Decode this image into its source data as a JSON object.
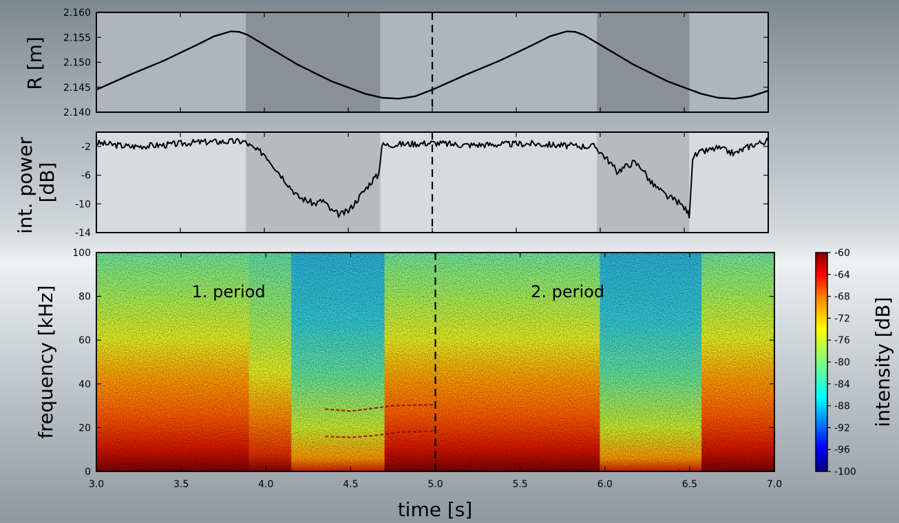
{
  "chart_data": [
    {
      "type": "line",
      "ylabel": "R [m]",
      "xlim": [
        3.0,
        7.0
      ],
      "ylim": [
        2.14,
        2.16
      ],
      "yticks": [
        "2.140",
        "2.145",
        "2.150",
        "2.155",
        "2.160"
      ],
      "series": [
        {
          "x": [
            3.0,
            3.2,
            3.4,
            3.6,
            3.7,
            3.8,
            3.85,
            3.9,
            4.0,
            4.2,
            4.4,
            4.6,
            4.7,
            4.8,
            4.9,
            5.0,
            5.2,
            5.4,
            5.6,
            5.7,
            5.8,
            5.85,
            5.9,
            6.0,
            6.2,
            6.4,
            6.6,
            6.7,
            6.8,
            6.9,
            7.0
          ],
          "values": [
            2.1445,
            2.1475,
            2.1503,
            2.1535,
            2.1552,
            2.1562,
            2.1561,
            2.1555,
            2.1535,
            2.1495,
            2.1462,
            2.1437,
            2.1429,
            2.1427,
            2.1432,
            2.1445,
            2.1475,
            2.1503,
            2.1535,
            2.1552,
            2.1562,
            2.1561,
            2.1555,
            2.1535,
            2.1495,
            2.1462,
            2.1437,
            2.1429,
            2.1427,
            2.1432,
            2.1443
          ]
        }
      ],
      "shaded_intervals": [
        [
          3.89,
          4.69
        ],
        [
          5.98,
          6.53
        ]
      ],
      "vline": 5.0
    },
    {
      "type": "line",
      "ylabel": "int. power [dB]",
      "xlim": [
        3.0,
        7.0
      ],
      "ylim": [
        -14,
        0
      ],
      "yticks": [
        "-14",
        "-10",
        "-6",
        "-2"
      ],
      "series": [
        {
          "x": [
            3.0,
            3.2,
            3.4,
            3.6,
            3.8,
            3.88,
            3.95,
            4.0,
            4.05,
            4.1,
            4.15,
            4.2,
            4.3,
            4.35,
            4.4,
            4.45,
            4.5,
            4.55,
            4.6,
            4.65,
            4.68,
            4.7,
            4.8,
            5.0,
            5.2,
            5.4,
            5.6,
            5.8,
            5.97,
            6.05,
            6.1,
            6.15,
            6.2,
            6.25,
            6.3,
            6.35,
            6.4,
            6.45,
            6.5,
            6.53,
            6.55,
            6.6,
            6.7,
            6.8,
            6.9,
            7.0
          ],
          "values": [
            -1.5,
            -2.0,
            -1.8,
            -1.4,
            -1.3,
            -1.3,
            -2.5,
            -3.0,
            -4.5,
            -6.0,
            -7.5,
            -9.0,
            -10.0,
            -9.5,
            -11.0,
            -11.5,
            -11.0,
            -9.5,
            -8.0,
            -6.5,
            -6.0,
            -1.8,
            -1.7,
            -1.5,
            -1.8,
            -1.7,
            -1.6,
            -1.9,
            -2.0,
            -4.0,
            -5.5,
            -4.8,
            -4.2,
            -5.0,
            -7.0,
            -8.0,
            -9.0,
            -9.5,
            -10.5,
            -11.5,
            -3.5,
            -2.8,
            -2.2,
            -3.0,
            -1.8,
            -1.2
          ]
        }
      ],
      "shaded_intervals": [
        [
          3.89,
          4.69
        ],
        [
          5.98,
          6.53
        ]
      ],
      "vline": 5.0
    },
    {
      "type": "heatmap",
      "xlabel": "time [s]",
      "ylabel": "frequency [kHz]",
      "xlim": [
        3.0,
        7.0
      ],
      "ylim": [
        0,
        100
      ],
      "xticks": [
        "3.0",
        "3.5",
        "4.0",
        "4.5",
        "5.0",
        "5.5",
        "6.0",
        "6.5",
        "7.0"
      ],
      "yticks": [
        "0",
        "20",
        "40",
        "60",
        "80",
        "100"
      ],
      "annotations": [
        {
          "text": "1. period",
          "x": 3.78,
          "y": 82
        },
        {
          "text": "2. period",
          "x": 5.78,
          "y": 82
        }
      ],
      "colorbar": {
        "label": "intensity [dB]",
        "range": [
          -100,
          -60
        ],
        "ticks": [
          "-60",
          "-64",
          "-68",
          "-72",
          "-76",
          "-80",
          "-84",
          "-88",
          "-92",
          "-96",
          "-100"
        ],
        "colors": [
          "#00007f",
          "#0000ff",
          "#007fff",
          "#00ffff",
          "#7fff7f",
          "#ffff00",
          "#ff7f00",
          "#ff0000",
          "#7f0000"
        ]
      },
      "vline": 5.0,
      "mode_lines": [
        {
          "x": [
            4.35,
            4.5,
            4.6,
            4.75,
            5.0
          ],
          "values": [
            28.5,
            27.5,
            28.5,
            30,
            30.5
          ]
        },
        {
          "x": [
            4.35,
            4.5,
            4.65,
            4.8,
            5.0
          ],
          "values": [
            16,
            15.5,
            16.5,
            18,
            18.5
          ]
        }
      ]
    }
  ]
}
